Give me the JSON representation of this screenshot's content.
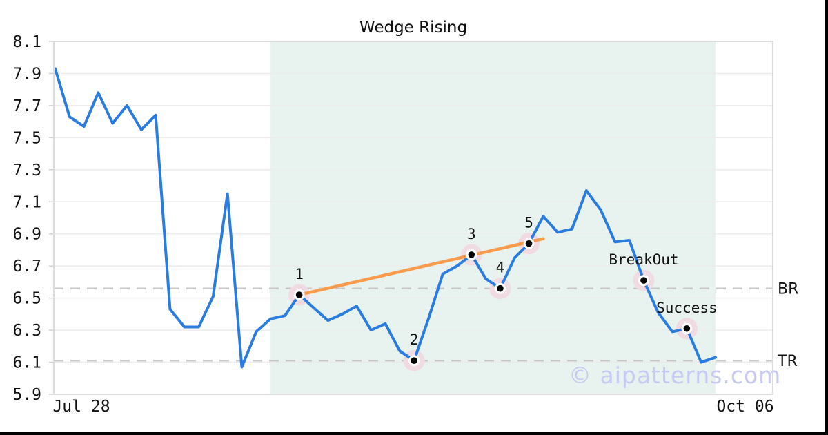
{
  "title": "Wedge Rising",
  "watermark": "© aipatterns.com",
  "colors": {
    "price_line": "#2B7CE0",
    "trendline": "#F89B4C",
    "pattern_region": "#E8F3EF",
    "level_dash": "#C9C9C9",
    "grid": "#ECECEC",
    "spine": "#DCDCDC",
    "tick": "#CFCFCF",
    "marker_halo": "#F0DBE2",
    "marker_ring": "#FFFFFF",
    "marker_dot": "#000000",
    "watermark_color": "#C8CAF3",
    "border": "#000000",
    "text": "#111111"
  },
  "chart_data": {
    "type": "line",
    "title": "Wedge Rising",
    "xlabel": "",
    "ylabel": "",
    "x_tick_labels": [
      "Jul 28",
      "Oct 06"
    ],
    "y_ticks": [
      8.1,
      7.9,
      7.7,
      7.5,
      7.3,
      7.1,
      6.9,
      6.7,
      6.5,
      6.3,
      6.1,
      5.9
    ],
    "ylim": [
      5.9,
      8.1
    ],
    "grid": true,
    "legend": false,
    "values": [
      7.93,
      7.63,
      7.57,
      7.78,
      7.59,
      7.7,
      7.55,
      7.64,
      6.43,
      6.32,
      6.32,
      6.51,
      7.15,
      6.07,
      6.29,
      6.37,
      6.39,
      6.52,
      6.44,
      6.36,
      6.4,
      6.45,
      6.3,
      6.34,
      6.17,
      6.11,
      6.37,
      6.65,
      6.7,
      6.77,
      6.62,
      6.56,
      6.75,
      6.84,
      7.01,
      6.91,
      6.93,
      7.17,
      7.05,
      6.85,
      6.86,
      6.61,
      6.41,
      6.29,
      6.31,
      6.1,
      6.13
    ],
    "highlight_region": {
      "start_index": 15,
      "end_index": 46
    },
    "trendline": {
      "from": {
        "index": 17,
        "value": 6.52
      },
      "to": {
        "index": 34,
        "value": 6.87
      }
    },
    "levels": [
      {
        "label": "BR",
        "value": 6.56
      },
      {
        "label": "TR",
        "value": 6.11
      }
    ],
    "annotations": [
      {
        "label": "1",
        "index": 17,
        "value": 6.52
      },
      {
        "label": "2",
        "index": 25,
        "value": 6.11
      },
      {
        "label": "3",
        "index": 29,
        "value": 6.77
      },
      {
        "label": "4",
        "index": 31,
        "value": 6.56
      },
      {
        "label": "5",
        "index": 33,
        "value": 6.84
      },
      {
        "label": "BreakOut",
        "index": 41,
        "value": 6.61
      },
      {
        "label": "Success",
        "index": 44,
        "value": 6.31
      }
    ]
  }
}
